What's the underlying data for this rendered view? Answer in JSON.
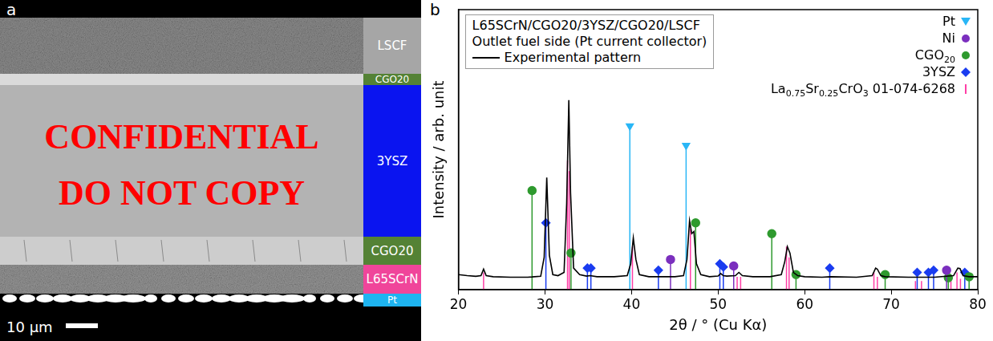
{
  "figure": {
    "panel_a": {
      "letter": "a",
      "layers": [
        {
          "label": "LSCF",
          "color": "#a6a6a6"
        },
        {
          "label": "CGO20",
          "color": "#548235"
        },
        {
          "label": "3YSZ",
          "color": "#0a14f0"
        },
        {
          "label": "CGO20",
          "color": "#548235"
        },
        {
          "label": "L65SCrN",
          "color": "#f0459a"
        },
        {
          "label": "Pt",
          "color": "#1eb4f0"
        }
      ],
      "scale_bar": "10 μm"
    },
    "panel_b_letter": "b",
    "watermark": [
      "CONFIDENTIAL",
      "DO NOT COPY"
    ]
  },
  "chart_data": {
    "type": "line",
    "title": "L65SCrN/CGO20/3YSZ/CGO20/LSCF",
    "subtitle": "Outlet fuel side (Pt current collector)",
    "x_label": "2θ / ° (Cu Kα)",
    "y_label": "Intensity / arb. unit",
    "xlim": [
      20,
      80
    ],
    "xticks": [
      20,
      30,
      40,
      50,
      60,
      70,
      80
    ],
    "ylim": [
      0,
      130
    ],
    "yticks": [],
    "tick_labels": "x",
    "grid": false,
    "legend": "top-right",
    "series": [
      {
        "name": "Experimental pattern",
        "type": "line",
        "color": "#000000",
        "line_style": "solid",
        "x": [
          20,
          21,
          22,
          22.6,
          22.9,
          23.2,
          24,
          26,
          28,
          28.5,
          29.5,
          29.9,
          30.2,
          30.5,
          30.9,
          31.5,
          32.2,
          32.5,
          32.75,
          32.95,
          33.3,
          34,
          34.8,
          35.2,
          36,
          38,
          39.5,
          39.9,
          40.2,
          40.5,
          40.9,
          42,
          43,
          44,
          45,
          46,
          46.4,
          46.7,
          46.95,
          47.2,
          47.5,
          48,
          49,
          50,
          50.3,
          50.6,
          51,
          52,
          52.4,
          52.8,
          54,
          56,
          57.3,
          57.7,
          58,
          58.3,
          58.7,
          59.2,
          60,
          62,
          63,
          66,
          67.8,
          68.2,
          68.4,
          68.8,
          69.3,
          72,
          75,
          77.2,
          77.7,
          77.95,
          78.3,
          79,
          80
        ],
        "values": [
          7,
          6.5,
          6.2,
          6.5,
          9.5,
          6.5,
          6,
          5.8,
          5.8,
          5.9,
          6.2,
          15,
          52,
          16,
          7,
          6.5,
          8,
          40,
          88,
          45,
          10,
          7,
          6.3,
          6.5,
          6,
          6,
          6.5,
          12,
          24,
          14,
          7,
          6,
          6,
          6,
          6,
          6.5,
          14,
          32,
          26,
          27,
          12,
          7,
          6,
          6.3,
          7.5,
          6.5,
          6.3,
          6.5,
          8,
          6.5,
          6,
          6,
          7,
          13,
          20,
          17,
          8,
          6.5,
          6,
          5.8,
          6,
          5.8,
          6.5,
          10,
          9.5,
          6.5,
          6,
          5.8,
          5.8,
          6.5,
          10,
          9.8,
          6.5,
          6,
          6
        ]
      },
      {
        "name": "Pt",
        "type": "stick",
        "color": "#29b6f6",
        "marker": "triangle_down",
        "x": [
          39.8,
          46.3
        ],
        "values": [
          76,
          67
        ]
      },
      {
        "name": "Ni",
        "type": "stick",
        "color": "#7b2fbe",
        "marker": "circle",
        "x": [
          44.5,
          51.8,
          76.4
        ],
        "values": [
          14,
          11,
          9
        ]
      },
      {
        "name": "CGO20",
        "type": "stick",
        "color": "#2e9a2e",
        "marker": "circle",
        "x": [
          28.5,
          33.0,
          47.4,
          56.2,
          59.0,
          69.3,
          76.6,
          79.0
        ],
        "values": [
          46,
          17,
          31,
          26,
          7,
          7,
          5.5,
          6
        ]
      },
      {
        "name": "3YSZ",
        "type": "stick",
        "color": "#1a3cf0",
        "marker": "diamond",
        "x": [
          30.1,
          34.9,
          35.3,
          43.1,
          50.2,
          50.6,
          62.9,
          73.0,
          74.3,
          74.9,
          78.5
        ],
        "values": [
          31,
          10,
          10,
          9,
          12,
          10.5,
          10,
          8,
          8,
          9,
          8
        ]
      },
      {
        "name": "La0.75Sr0.25CrO3 01-074-6268",
        "type": "stick",
        "color": "#ff3fa6",
        "marker": "none",
        "x": [
          22.9,
          32.6,
          32.8,
          40.1,
          46.8,
          52.2,
          52.6,
          57.9,
          58.2,
          68.0,
          68.4,
          72.8,
          73.5,
          76.9,
          77.6,
          78.0
        ],
        "values": [
          8,
          60,
          55,
          20,
          28,
          6,
          6,
          20,
          15,
          8,
          6,
          4,
          4,
          4,
          8,
          5
        ]
      }
    ]
  }
}
